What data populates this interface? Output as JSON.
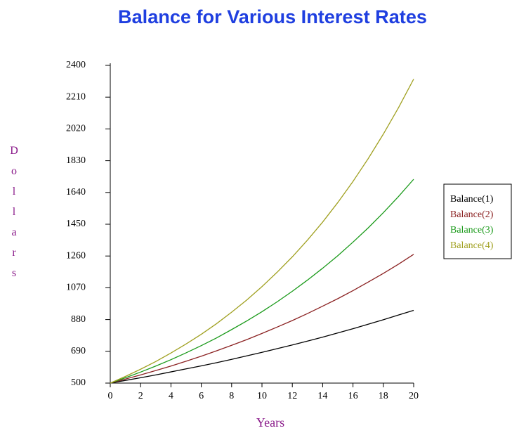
{
  "chart_data": {
    "type": "line",
    "title": "Balance for Various Interest Rates",
    "xlabel": "Years",
    "ylabel": "Dollars",
    "x": [
      0,
      1,
      2,
      3,
      4,
      5,
      6,
      7,
      8,
      9,
      10,
      11,
      12,
      13,
      14,
      15,
      16,
      17,
      18,
      19,
      20
    ],
    "xlim": [
      0,
      20
    ],
    "xticks": [
      0,
      2,
      4,
      6,
      8,
      10,
      12,
      14,
      16,
      18,
      20
    ],
    "ylim": [
      500,
      2400
    ],
    "yticks": [
      500,
      690,
      880,
      1070,
      1260,
      1450,
      1640,
      1830,
      2020,
      2210,
      2400
    ],
    "grid": false,
    "legend": "right",
    "series": [
      {
        "name": "Balance(1)",
        "color": "#000000",
        "values": [
          500,
          516,
          532,
          549,
          567,
          585,
          603,
          622,
          642,
          663,
          684,
          706,
          728,
          751,
          775,
          800,
          825,
          852,
          879,
          907,
          935
        ]
      },
      {
        "name": "Balance(2)",
        "color": "#8b2222",
        "values": [
          500,
          524,
          549,
          575,
          602,
          631,
          661,
          693,
          726,
          760,
          797,
          835,
          874,
          916,
          960,
          1005,
          1053,
          1104,
          1156,
          1211,
          1270
        ]
      },
      {
        "name": "Balance(3)",
        "color": "#1a9a1a",
        "values": [
          500,
          532,
          566,
          602,
          640,
          681,
          724,
          770,
          820,
          872,
          927,
          986,
          1049,
          1116,
          1187,
          1262,
          1343,
          1428,
          1519,
          1616,
          1719
        ]
      },
      {
        "name": "Balance(4)",
        "color": "#a0a020",
        "values": [
          500,
          540,
          583,
          629,
          680,
          734,
          792,
          855,
          924,
          997,
          1077,
          1163,
          1255,
          1355,
          1463,
          1580,
          1706,
          1842,
          1989,
          2147,
          2318
        ]
      }
    ]
  }
}
